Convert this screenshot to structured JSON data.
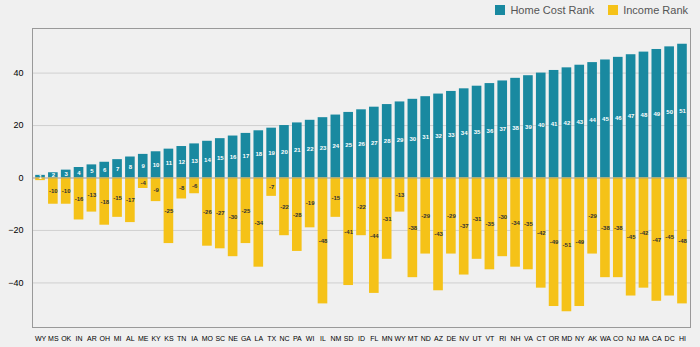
{
  "chart_data": {
    "type": "bar",
    "categories": [
      "WY",
      "MS",
      "OK",
      "IN",
      "AR",
      "OH",
      "MI",
      "AL",
      "ME",
      "KY",
      "KS",
      "TN",
      "IA",
      "MO",
      "SC",
      "NE",
      "GA",
      "LA",
      "TX",
      "NC",
      "PA",
      "WI",
      "IL",
      "NM",
      "SD",
      "ID",
      "FL",
      "MN",
      "WY",
      "MT",
      "ND",
      "AZ",
      "DE",
      "NV",
      "UT",
      "VT",
      "RI",
      "NH",
      "VA",
      "CT",
      "OR",
      "MD",
      "NY",
      "AK",
      "WA",
      "CO",
      "NJ",
      "MA",
      "CA",
      "DC",
      "HI"
    ],
    "series": [
      {
        "name": "Home Cost Rank",
        "color": "#1989a0",
        "values": [
          1,
          2,
          3,
          4,
          5,
          6,
          7,
          8,
          9,
          10,
          11,
          12,
          13,
          14,
          15,
          16,
          17,
          18,
          19,
          20,
          21,
          22,
          23,
          24,
          25,
          26,
          27,
          28,
          29,
          30,
          31,
          32,
          33,
          34,
          35,
          36,
          37,
          38,
          39,
          40,
          41,
          42,
          43,
          44,
          45,
          46,
          47,
          48,
          49,
          50,
          51
        ]
      },
      {
        "name": "Income Rank",
        "color": "#f5c218",
        "values": [
          -1,
          -10,
          -10,
          -16,
          -13,
          -18,
          -15,
          -17,
          -4,
          -9,
          -25,
          -8,
          -6,
          -26,
          -27,
          -30,
          -25,
          -34,
          -7,
          -22,
          -28,
          -19,
          -48,
          -15,
          -41,
          -22,
          -44,
          -31,
          -13,
          -38,
          -29,
          -43,
          -29,
          -37,
          -31,
          -35,
          -30,
          -34,
          -35,
          -42,
          -49,
          -51,
          -49,
          -29,
          -38,
          -38,
          -45,
          -42,
          -47,
          -45,
          -48
        ],
        "value_labels": [
          null,
          "-10",
          "-10",
          "-16",
          "-13",
          "-18",
          "-15",
          "-17",
          "-4",
          "-9",
          "-25",
          "-8",
          "-6",
          "-26",
          "-27",
          "-30",
          "-25",
          "-34",
          "-7",
          "-22",
          "-28",
          "-19",
          "-48",
          "-15",
          "-41",
          "-22",
          "-44",
          "-31",
          "-13",
          "-38",
          "-29",
          "-43",
          "-29",
          "-37",
          "-31",
          "-35",
          "-30",
          "-34",
          "-35",
          "-42",
          "-49",
          "-51",
          "-49",
          "-29",
          "-38",
          "-38",
          "-45",
          "-42",
          "-47",
          "-45",
          "-48"
        ]
      }
    ],
    "ylim": [
      -57,
      57
    ],
    "yticks": [
      -40,
      -20,
      0,
      20,
      40
    ],
    "grid": true,
    "legend": "upper right",
    "data_labels": true
  }
}
